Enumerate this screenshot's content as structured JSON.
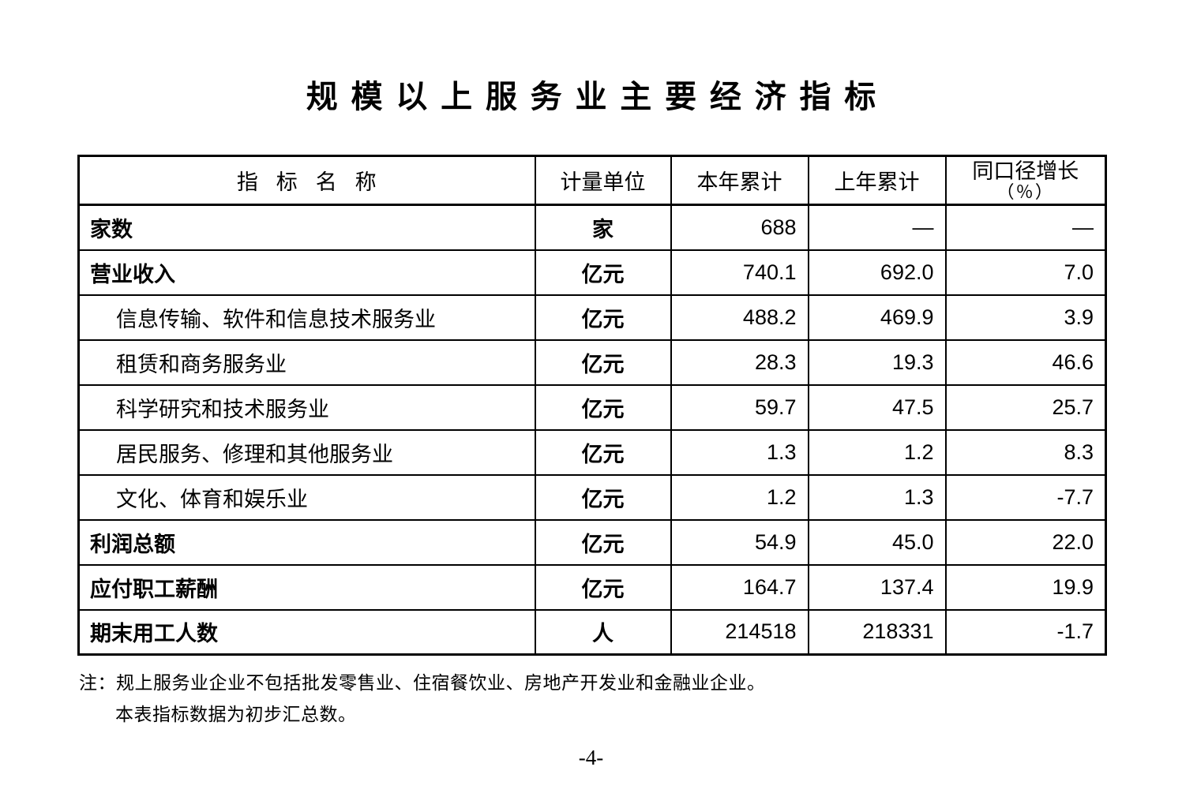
{
  "title": "规模以上服务业主要经济指标",
  "table": {
    "columns": {
      "indicator": "指标名称",
      "unit": "计量单位",
      "current_year": "本年累计",
      "previous_year": "上年累计",
      "growth_line1": "同口径增长",
      "growth_line2": "（％）"
    },
    "rows": [
      {
        "label": "家数",
        "level": 0,
        "unit": "家",
        "current_year": "688",
        "previous_year": "—",
        "growth": "—"
      },
      {
        "label": "营业收入",
        "level": 0,
        "unit": "亿元",
        "current_year": "740.1",
        "previous_year": "692.0",
        "growth": "7.0"
      },
      {
        "label": "信息传输、软件和信息技术服务业",
        "level": 1,
        "unit": "亿元",
        "current_year": "488.2",
        "previous_year": "469.9",
        "growth": "3.9"
      },
      {
        "label": "租赁和商务服务业",
        "level": 1,
        "unit": "亿元",
        "current_year": "28.3",
        "previous_year": "19.3",
        "growth": "46.6"
      },
      {
        "label": "科学研究和技术服务业",
        "level": 1,
        "unit": "亿元",
        "current_year": "59.7",
        "previous_year": "47.5",
        "growth": "25.7"
      },
      {
        "label": "居民服务、修理和其他服务业",
        "level": 1,
        "unit": "亿元",
        "current_year": "1.3",
        "previous_year": "1.2",
        "growth": "8.3"
      },
      {
        "label": "文化、体育和娱乐业",
        "level": 1,
        "unit": "亿元",
        "current_year": "1.2",
        "previous_year": "1.3",
        "growth": "-7.7"
      },
      {
        "label": "利润总额",
        "level": 0,
        "unit": "亿元",
        "current_year": "54.9",
        "previous_year": "45.0",
        "growth": "22.0"
      },
      {
        "label": "应付职工薪酬",
        "level": 0,
        "unit": "亿元",
        "current_year": "164.7",
        "previous_year": "137.4",
        "growth": "19.9"
      },
      {
        "label": "期末用工人数",
        "level": 0,
        "unit": "人",
        "current_year": "214518",
        "previous_year": "218331",
        "growth": "-1.7"
      }
    ]
  },
  "notes": [
    "注：规上服务业企业不包括批发零售业、住宿餐饮业、房地产开发业和金融业企业。",
    "本表指标数据为初步汇总数。"
  ],
  "page_number": "-4-"
}
